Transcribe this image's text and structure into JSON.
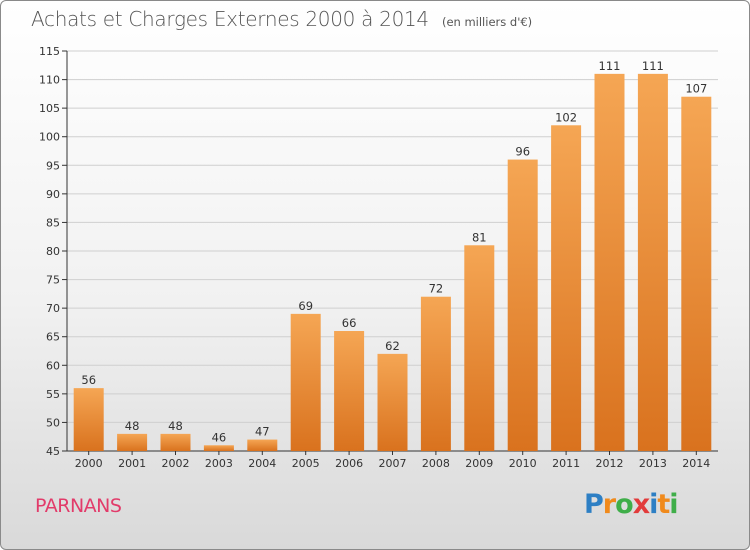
{
  "title": {
    "main": "Achats et Charges Externes 2000 à 2014",
    "unit": "(en milliers d'€)"
  },
  "place_name": "PARNANS",
  "logo": {
    "letters": [
      "P",
      "r",
      "o",
      "x",
      "i",
      "t",
      "i"
    ],
    "colors": [
      "#2d7fc4",
      "#f08a1c",
      "#3fae49",
      "#e23b3b",
      "#2d7fc4",
      "#f08a1c",
      "#3fae49"
    ]
  },
  "colors": {
    "bar_top": "#f5a654",
    "bar_bottom": "#d9721e",
    "grid": "#cfcfcf",
    "place": "#e23b6a"
  },
  "chart_data": {
    "type": "bar",
    "title": "Achats et Charges Externes 2000 à 2014",
    "subtitle": "(en milliers d'€)",
    "categories": [
      "2000",
      "2001",
      "2002",
      "2003",
      "2004",
      "2005",
      "2006",
      "2007",
      "2008",
      "2009",
      "2010",
      "2011",
      "2012",
      "2013",
      "2014"
    ],
    "values": [
      56,
      48,
      48,
      46,
      47,
      69,
      66,
      62,
      72,
      81,
      96,
      102,
      111,
      111,
      107
    ],
    "ylim": [
      45,
      115
    ],
    "yticks": [
      45,
      50,
      55,
      60,
      65,
      70,
      75,
      80,
      85,
      90,
      95,
      100,
      105,
      110,
      115
    ],
    "grid": true,
    "legend": "none"
  }
}
